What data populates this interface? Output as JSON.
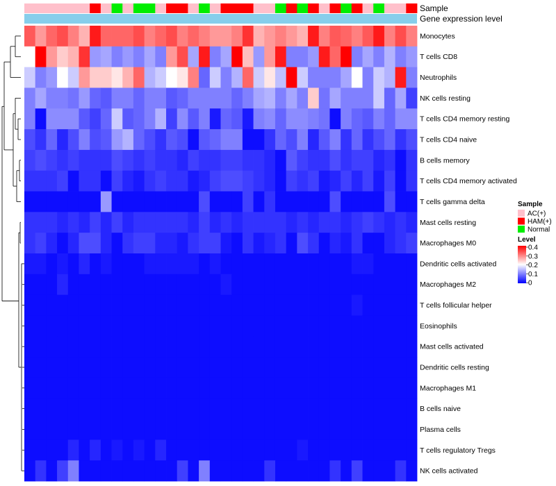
{
  "chart_data": {
    "type": "heatmap",
    "title": "",
    "annotation_labels": {
      "sample": "Sample",
      "gene": "Gene expression level"
    },
    "sample_groups": [
      "AC(+)",
      "HAM(+)",
      "Normal"
    ],
    "sample_colors": {
      "AC(+)": "#ffc0cb",
      "HAM(+)": "#ff0000",
      "Normal": "#00ee00"
    },
    "gene_level_color": "#87ceeb",
    "samples": [
      "AC(+)",
      "AC(+)",
      "AC(+)",
      "AC(+)",
      "AC(+)",
      "AC(+)",
      "HAM(+)",
      "AC(+)",
      "Normal",
      "AC(+)",
      "Normal",
      "Normal",
      "AC(+)",
      "HAM(+)",
      "HAM(+)",
      "AC(+)",
      "Normal",
      "AC(+)",
      "HAM(+)",
      "HAM(+)",
      "HAM(+)",
      "AC(+)",
      "AC(+)",
      "Normal",
      "HAM(+)",
      "Normal",
      "HAM(+)",
      "AC(+)",
      "HAM(+)",
      "Normal",
      "HAM(+)",
      "AC(+)",
      "Normal",
      "AC(+)",
      "AC(+)",
      "HAM(+)"
    ],
    "rows": [
      "Monocytes",
      "T cells CD8",
      "Neutrophils",
      "NK cells resting",
      "T cells CD4 memory resting",
      "T cells CD4 naive",
      "B cells memory",
      "T cells CD4 memory activated",
      "T cells gamma delta",
      "Mast cells resting",
      "Macrophages M0",
      "Dendritic cells activated",
      "Macrophages M2",
      "T cells follicular helper",
      "Eosinophils",
      "Mast cells activated",
      "Dendritic cells resting",
      "Macrophages M1",
      "B cells naive",
      "Plasma cells",
      "T cells regulatory  Tregs",
      "NK cells activated"
    ],
    "values": [
      [
        0.33,
        0.28,
        0.32,
        0.34,
        0.3,
        0.26,
        0.38,
        0.32,
        0.32,
        0.32,
        0.34,
        0.3,
        0.32,
        0.34,
        0.3,
        0.32,
        0.3,
        0.28,
        0.28,
        0.3,
        0.36,
        0.26,
        0.28,
        0.3,
        0.28,
        0.26,
        0.38,
        0.3,
        0.33,
        0.32,
        0.3,
        0.33,
        0.38,
        0.3,
        0.34,
        0.3
      ],
      [
        0.2,
        0.4,
        0.28,
        0.24,
        0.26,
        0.36,
        0.12,
        0.13,
        0.1,
        0.12,
        0.1,
        0.13,
        0.1,
        0.28,
        0.34,
        0.13,
        0.38,
        0.1,
        0.13,
        0.4,
        0.25,
        0.12,
        0.28,
        0.38,
        0.1,
        0.1,
        0.12,
        0.38,
        0.32,
        0.4,
        0.1,
        0.13,
        0.1,
        0.14,
        0.1,
        0.12
      ],
      [
        0.16,
        0.1,
        0.12,
        0.2,
        0.16,
        0.28,
        0.24,
        0.24,
        0.22,
        0.26,
        0.32,
        0.14,
        0.16,
        0.2,
        0.22,
        0.3,
        0.08,
        0.16,
        0.1,
        0.14,
        0.32,
        0.16,
        0.22,
        0.15,
        0.4,
        0.16,
        0.1,
        0.1,
        0.1,
        0.13,
        0.2,
        0.1,
        0.16,
        0.14,
        0.38,
        0.1
      ],
      [
        0.1,
        0.13,
        0.1,
        0.1,
        0.09,
        0.12,
        0.08,
        0.07,
        0.1,
        0.1,
        0.08,
        0.1,
        0.1,
        0.07,
        0.08,
        0.1,
        0.1,
        0.1,
        0.1,
        0.08,
        0.1,
        0.13,
        0.14,
        0.1,
        0.13,
        0.1,
        0.24,
        0.09,
        0.13,
        0.1,
        0.1,
        0.1,
        0.16,
        0.08,
        0.13,
        0.05
      ],
      [
        0.1,
        0.01,
        0.11,
        0.11,
        0.11,
        0.07,
        0.05,
        0.08,
        0.16,
        0.07,
        0.08,
        0.1,
        0.14,
        0.05,
        0.11,
        0.07,
        0.1,
        0.02,
        0.08,
        0.07,
        0.02,
        0.1,
        0.11,
        0.08,
        0.11,
        0.11,
        0.1,
        0.09,
        0.01,
        0.1,
        0.08,
        0.07,
        0.1,
        0.08,
        0.11,
        0.11
      ],
      [
        0.06,
        0.04,
        0.08,
        0.03,
        0.06,
        0.1,
        0.06,
        0.07,
        0.12,
        0.14,
        0.08,
        0.06,
        0.04,
        0.07,
        0.06,
        0.01,
        0.07,
        0.08,
        0.1,
        0.1,
        0.01,
        0.01,
        0.04,
        0.08,
        0.06,
        0.1,
        0.03,
        0.07,
        0.1,
        0.04,
        0.08,
        0.04,
        0.06,
        0.08,
        0.04,
        0.06
      ],
      [
        0.05,
        0.06,
        0.05,
        0.04,
        0.05,
        0.04,
        0.04,
        0.04,
        0.06,
        0.05,
        0.04,
        0.05,
        0.04,
        0.04,
        0.03,
        0.05,
        0.04,
        0.04,
        0.05,
        0.05,
        0.04,
        0.04,
        0.03,
        0.01,
        0.07,
        0.05,
        0.04,
        0.04,
        0.06,
        0.04,
        0.05,
        0.05,
        0.03,
        0.04,
        0.01,
        0.04
      ],
      [
        0.04,
        0.04,
        0.04,
        0.05,
        0.01,
        0.04,
        0.04,
        0.01,
        0.05,
        0.03,
        0.02,
        0.04,
        0.05,
        0.04,
        0.04,
        0.02,
        0.03,
        0.05,
        0.06,
        0.06,
        0.05,
        0.04,
        0.03,
        0.01,
        0.05,
        0.04,
        0.05,
        0.02,
        0.03,
        0.05,
        0.03,
        0.05,
        0.02,
        0.05,
        0.01,
        0.04
      ],
      [
        0.01,
        0.01,
        0.01,
        0.01,
        0.01,
        0.01,
        0.01,
        0.12,
        0.01,
        0.01,
        0.01,
        0.01,
        0.01,
        0.01,
        0.01,
        0.01,
        0.06,
        0.01,
        0.01,
        0.01,
        0.05,
        0.01,
        0.04,
        0.01,
        0.01,
        0.01,
        0.01,
        0.01,
        0.06,
        0.01,
        0.01,
        0.01,
        0.01,
        0.06,
        0.01,
        0.01
      ],
      [
        0.04,
        0.04,
        0.04,
        0.03,
        0.04,
        0.03,
        0.05,
        0.03,
        0.05,
        0.03,
        0.04,
        0.04,
        0.04,
        0.04,
        0.04,
        0.03,
        0.05,
        0.03,
        0.04,
        0.03,
        0.04,
        0.04,
        0.04,
        0.04,
        0.03,
        0.04,
        0.03,
        0.04,
        0.04,
        0.03,
        0.04,
        0.05,
        0.04,
        0.03,
        0.04,
        0.03
      ],
      [
        0.04,
        0.05,
        0.03,
        0.01,
        0.03,
        0.06,
        0.06,
        0.03,
        0.01,
        0.04,
        0.05,
        0.05,
        0.03,
        0.03,
        0.02,
        0.04,
        0.05,
        0.05,
        0.02,
        0.01,
        0.04,
        0.02,
        0.03,
        0.04,
        0.01,
        0.06,
        0.04,
        0.01,
        0.03,
        0.02,
        0.04,
        0.01,
        0.01,
        0.03,
        0.04,
        0.05
      ],
      [
        0.02,
        0.02,
        0.01,
        0.02,
        0.01,
        0.03,
        0.01,
        0.02,
        0.01,
        0.01,
        0.01,
        0.02,
        0.02,
        0.02,
        0.02,
        0.02,
        0.01,
        0.02,
        0.01,
        0.01,
        0.01,
        0.01,
        0.01,
        0.01,
        0.01,
        0.01,
        0.01,
        0.01,
        0.01,
        0.01,
        0.02,
        0.02,
        0.01,
        0.01,
        0.01,
        0.01
      ],
      [
        0.01,
        0.01,
        0.01,
        0.03,
        0.01,
        0.01,
        0.01,
        0.01,
        0.01,
        0.01,
        0.01,
        0.01,
        0.01,
        0.01,
        0.01,
        0.01,
        0.01,
        0.01,
        0.02,
        0.01,
        0.01,
        0.01,
        0.01,
        0.01,
        0.01,
        0.01,
        0.01,
        0.01,
        0.01,
        0.01,
        0.01,
        0.01,
        0.01,
        0.01,
        0.01,
        0.01
      ],
      [
        0.01,
        0.01,
        0.01,
        0.01,
        0.01,
        0.01,
        0.01,
        0.01,
        0.01,
        0.01,
        0.01,
        0.01,
        0.01,
        0.01,
        0.01,
        0.01,
        0.01,
        0.01,
        0.01,
        0.01,
        0.01,
        0.01,
        0.01,
        0.01,
        0.01,
        0.01,
        0.01,
        0.01,
        0.01,
        0.01,
        0.02,
        0.01,
        0.01,
        0.01,
        0.01,
        0.01
      ],
      [
        0.01,
        0.01,
        0.01,
        0.01,
        0.01,
        0.01,
        0.01,
        0.01,
        0.01,
        0.01,
        0.01,
        0.01,
        0.01,
        0.01,
        0.01,
        0.01,
        0.01,
        0.01,
        0.01,
        0.01,
        0.01,
        0.01,
        0.01,
        0.01,
        0.01,
        0.01,
        0.01,
        0.01,
        0.01,
        0.01,
        0.01,
        0.01,
        0.01,
        0.01,
        0.01,
        0.01
      ],
      [
        0.01,
        0.01,
        0.01,
        0.01,
        0.01,
        0.01,
        0.01,
        0.01,
        0.01,
        0.01,
        0.01,
        0.01,
        0.01,
        0.01,
        0.01,
        0.01,
        0.01,
        0.01,
        0.01,
        0.01,
        0.01,
        0.01,
        0.01,
        0.01,
        0.01,
        0.01,
        0.01,
        0.01,
        0.01,
        0.01,
        0.01,
        0.01,
        0.01,
        0.01,
        0.01,
        0.01
      ],
      [
        0.01,
        0.01,
        0.01,
        0.01,
        0.01,
        0.01,
        0.01,
        0.01,
        0.01,
        0.01,
        0.01,
        0.01,
        0.01,
        0.01,
        0.01,
        0.01,
        0.01,
        0.01,
        0.01,
        0.01,
        0.01,
        0.01,
        0.01,
        0.01,
        0.01,
        0.01,
        0.01,
        0.01,
        0.01,
        0.01,
        0.01,
        0.01,
        0.01,
        0.01,
        0.01,
        0.01
      ],
      [
        0.01,
        0.01,
        0.01,
        0.01,
        0.01,
        0.01,
        0.01,
        0.01,
        0.01,
        0.01,
        0.01,
        0.01,
        0.01,
        0.01,
        0.01,
        0.01,
        0.01,
        0.01,
        0.01,
        0.01,
        0.01,
        0.01,
        0.01,
        0.01,
        0.01,
        0.01,
        0.01,
        0.01,
        0.01,
        0.01,
        0.01,
        0.01,
        0.01,
        0.01,
        0.01,
        0.01
      ],
      [
        0.01,
        0.01,
        0.01,
        0.01,
        0.01,
        0.01,
        0.01,
        0.01,
        0.01,
        0.01,
        0.01,
        0.01,
        0.01,
        0.01,
        0.01,
        0.01,
        0.01,
        0.01,
        0.01,
        0.01,
        0.01,
        0.01,
        0.01,
        0.01,
        0.01,
        0.01,
        0.01,
        0.01,
        0.01,
        0.01,
        0.01,
        0.01,
        0.01,
        0.01,
        0.01,
        0.01
      ],
      [
        0.01,
        0.01,
        0.01,
        0.01,
        0.01,
        0.01,
        0.01,
        0.01,
        0.01,
        0.01,
        0.01,
        0.01,
        0.01,
        0.01,
        0.01,
        0.01,
        0.01,
        0.01,
        0.01,
        0.01,
        0.01,
        0.01,
        0.01,
        0.01,
        0.01,
        0.01,
        0.01,
        0.01,
        0.01,
        0.01,
        0.01,
        0.01,
        0.01,
        0.01,
        0.01,
        0.01
      ],
      [
        0.01,
        0.01,
        0.01,
        0.01,
        0.03,
        0.01,
        0.03,
        0.01,
        0.02,
        0.01,
        0.02,
        0.01,
        0.03,
        0.01,
        0.01,
        0.01,
        0.01,
        0.01,
        0.01,
        0.01,
        0.01,
        0.01,
        0.01,
        0.01,
        0.01,
        0.02,
        0.01,
        0.01,
        0.01,
        0.01,
        0.01,
        0.01,
        0.01,
        0.01,
        0.01,
        0.01
      ],
      [
        0.01,
        0.04,
        0.01,
        0.05,
        0.1,
        0.01,
        0.01,
        0.01,
        0.01,
        0.01,
        0.01,
        0.01,
        0.01,
        0.01,
        0.05,
        0.01,
        0.1,
        0.01,
        0.01,
        0.01,
        0.01,
        0.01,
        0.04,
        0.01,
        0.01,
        0.01,
        0.01,
        0.01,
        0.04,
        0.01,
        0.05,
        0.01,
        0.01,
        0.01,
        0.04,
        0.01
      ]
    ],
    "color_scale": {
      "min": 0,
      "mid": 0.2,
      "max": 0.4,
      "low": "#0000ff",
      "midcolor": "#ffffff",
      "high": "#ff0000"
    },
    "legend": {
      "sample_title": "Sample",
      "sample_entries": [
        "AC(+)",
        "HAM(+)",
        "Normal"
      ],
      "level_title": "Level",
      "level_ticks": [
        "0.4",
        "0.3",
        "0.2",
        "0.1",
        "0"
      ],
      "placement": "right"
    },
    "dendrogram": {
      "rows": "left"
    }
  }
}
